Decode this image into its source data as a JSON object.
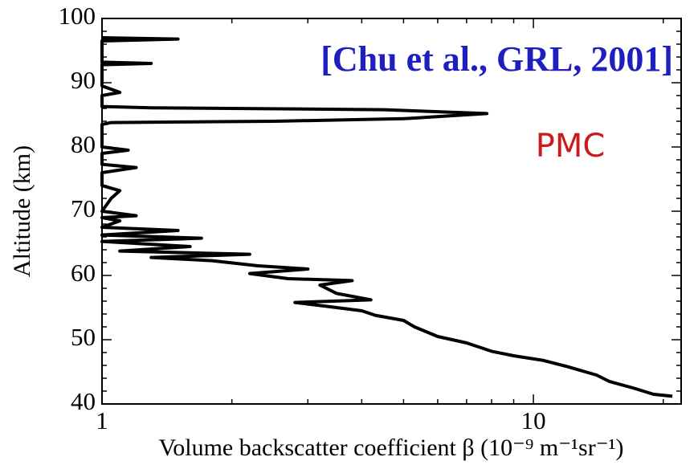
{
  "chart_data": {
    "type": "line",
    "x_label": "Volume backscatter coefficient β (10⁻⁹ m⁻¹sr⁻¹)",
    "y_label": "Altitude (km)",
    "annotations": [
      "[Chu et al., GRL, 2001]",
      "PMC"
    ],
    "x_scale": "log",
    "xlim": [
      1,
      22
    ],
    "xticks": [
      1,
      10
    ],
    "xminorticks": [
      2,
      3,
      4,
      5,
      6,
      7,
      8,
      9,
      20
    ],
    "ylim": [
      40,
      100
    ],
    "yticks": [
      40,
      50,
      60,
      70,
      80,
      90,
      100
    ],
    "yminorticks": [
      42,
      44,
      46,
      48,
      52,
      54,
      56,
      58,
      62,
      64,
      66,
      68,
      72,
      74,
      76,
      78,
      82,
      84,
      86,
      88,
      92,
      94,
      96,
      98
    ],
    "color": "#000000",
    "x": [
      21,
      19,
      17,
      15,
      14,
      12,
      10.5,
      9,
      8,
      7,
      6,
      5.3,
      5,
      4.3,
      4,
      3.5,
      2.8,
      4.2,
      3.5,
      3.2,
      3.8,
      2.7,
      2.2,
      3.0,
      2.3,
      1.8,
      1.3,
      2.2,
      1.1,
      1.6,
      1.0,
      1.7,
      1.0,
      1.5,
      1.0,
      1.1,
      1.0,
      1.2,
      1.0,
      1.05,
      1.1,
      1.0,
      1.0,
      1.2,
      1.0,
      1.0,
      1.15,
      1.0,
      1.0,
      1.05,
      2.5,
      5,
      7.8,
      4.5,
      1.3,
      1.0,
      1.0,
      1.1,
      1.0,
      1.0,
      1.3,
      1.0,
      1.0,
      1.5,
      1.0
    ],
    "values": [
      41.2,
      41.5,
      42.5,
      43.5,
      44.5,
      45.8,
      46.8,
      47.5,
      48.2,
      49.5,
      50.5,
      52,
      53,
      53.8,
      54.5,
      55,
      55.8,
      56.2,
      57.2,
      58.5,
      59.2,
      59.5,
      60.3,
      61,
      61.5,
      62.3,
      62.8,
      63.3,
      63.8,
      64.5,
      65.3,
      65.8,
      66.3,
      67,
      67.5,
      68.5,
      69,
      69.3,
      70,
      72,
      73.2,
      74,
      76,
      76.8,
      77.3,
      79,
      79.5,
      80,
      83.5,
      83.8,
      84,
      84.4,
      85.2,
      85.8,
      86.1,
      86.3,
      88,
      88.5,
      89.5,
      92.8,
      93,
      93.2,
      96.5,
      96.8,
      97
    ]
  }
}
